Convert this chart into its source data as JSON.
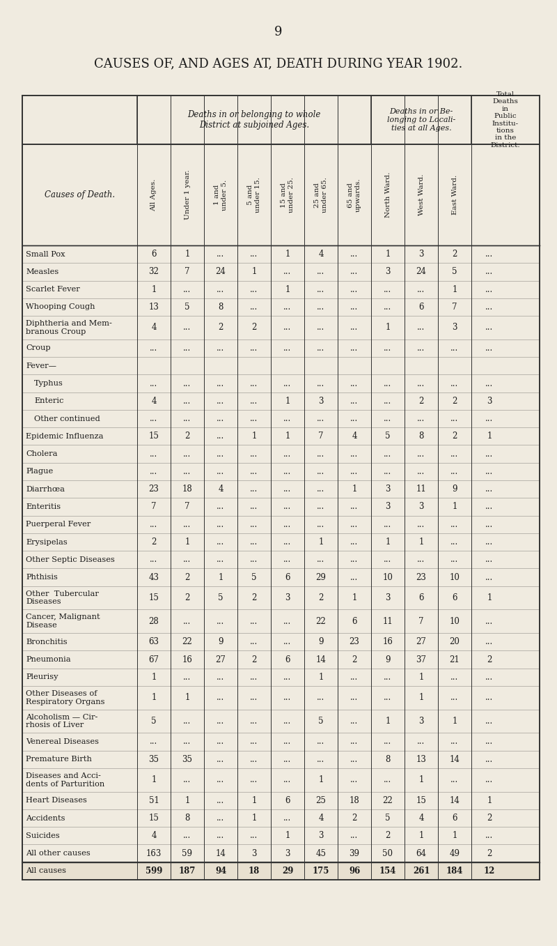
{
  "page_number": "9",
  "main_title": "CAUSES OF, AND AGES AT, DEATH DURING YEAR 1902.",
  "col_group1_header": "Deaths in or belonging to whole\nDistrict at subjoined Ages.",
  "col_group2_header": "Deaths in or Be-\nlonging to Locali-\nties at all Ages.",
  "col_group3_header": "Total\nDeaths\nin\nPublic\nInstitu-\ntions\nin the\nDistrict.",
  "row_header": "Causes of Death.",
  "col_headers": [
    "All Ages.",
    "Under 1 year.",
    "1 and\nunder 5.",
    "5 and\nunder 15.",
    "15 and\nunder 25.",
    "25 and\nunder 65.",
    "65 and\nupwards.",
    "North Ward.",
    "West Ward.",
    "East Ward.",
    "Total Deaths\nin Public\nInstitutions"
  ],
  "rows": [
    {
      "cause": "Small Pox",
      "indent": 0,
      "values": [
        "6",
        "1",
        "...",
        "...",
        "1",
        "4",
        "...",
        "1",
        "3",
        "2",
        "..."
      ]
    },
    {
      "cause": "Measles",
      "indent": 0,
      "values": [
        "32",
        "7",
        "24",
        "1",
        "...",
        "...",
        "...",
        "3",
        "24",
        "5",
        "..."
      ]
    },
    {
      "cause": "Scarlet Fever",
      "indent": 0,
      "values": [
        "1",
        "...",
        "...",
        "...",
        "1",
        "...",
        "...",
        "...",
        "...",
        "1",
        "..."
      ]
    },
    {
      "cause": "Whooping Cough",
      "indent": 0,
      "values": [
        "13",
        "5",
        "8",
        "...",
        "...",
        "...",
        "...",
        "...",
        "6",
        "7",
        "..."
      ]
    },
    {
      "cause": "Diphtheria and Mem-\nbranous Croup",
      "indent": 0,
      "values": [
        "4",
        "...",
        "2",
        "2",
        "...",
        "...",
        "...",
        "1",
        "...",
        "3",
        "..."
      ]
    },
    {
      "cause": "Croup",
      "indent": 0,
      "values": [
        "...",
        "...",
        "...",
        "...",
        "...",
        "...",
        "...",
        "...",
        "...",
        "...",
        "..."
      ]
    },
    {
      "cause": "Fever—",
      "indent": 0,
      "values": [
        "",
        "",
        "",
        "",
        "",
        "",
        "",
        "",
        "",
        "",
        ""
      ]
    },
    {
      "cause": "Typhus",
      "indent": 1,
      "values": [
        "...",
        "...",
        "...",
        "...",
        "...",
        "...",
        "...",
        "...",
        "...",
        "...",
        "..."
      ]
    },
    {
      "cause": "Enteric",
      "indent": 1,
      "values": [
        "4",
        "...",
        "...",
        "...",
        "1",
        "3",
        "...",
        "...",
        "2",
        "2",
        "3"
      ]
    },
    {
      "cause": "Other continued",
      "indent": 1,
      "values": [
        "...",
        "...",
        "...",
        "...",
        "...",
        "...",
        "...",
        "...",
        "...",
        "...",
        "..."
      ]
    },
    {
      "cause": "Epidemic Influenza",
      "indent": 0,
      "values": [
        "15",
        "2",
        "...",
        "1",
        "1",
        "7",
        "4",
        "5",
        "8",
        "2",
        "1"
      ]
    },
    {
      "cause": "Cholera",
      "indent": 0,
      "values": [
        "...",
        "...",
        "...",
        "...",
        "...",
        "...",
        "...",
        "...",
        "...",
        "...",
        "..."
      ]
    },
    {
      "cause": "Plague",
      "indent": 0,
      "values": [
        "...",
        "...",
        "...",
        "...",
        "...",
        "...",
        "...",
        "...",
        "...",
        "...",
        "..."
      ]
    },
    {
      "cause": "Diarrhœa",
      "indent": 0,
      "values": [
        "23",
        "18",
        "4",
        "...",
        "...",
        "...",
        "1",
        "3",
        "11",
        "9",
        "..."
      ]
    },
    {
      "cause": "Enteritis",
      "indent": 0,
      "values": [
        "7",
        "7",
        "...",
        "...",
        "...",
        "...",
        "...",
        "3",
        "3",
        "1",
        "..."
      ]
    },
    {
      "cause": "Puerperal Fever",
      "indent": 0,
      "values": [
        "...",
        "...",
        "...",
        "...",
        "...",
        "...",
        "...",
        "...",
        "...",
        "...",
        "..."
      ]
    },
    {
      "cause": "Erysipelas",
      "indent": 0,
      "values": [
        "2",
        "1",
        "...",
        "...",
        "...",
        "1",
        "...",
        "1",
        "1",
        "...",
        "..."
      ]
    },
    {
      "cause": "Other Septic Diseases",
      "indent": 0,
      "values": [
        "...",
        "...",
        "...",
        "...",
        "...",
        "...",
        "...",
        "...",
        "...",
        "...",
        "..."
      ]
    },
    {
      "cause": "Phthisis",
      "indent": 0,
      "values": [
        "43",
        "2",
        "1",
        "5",
        "6",
        "29",
        "...",
        "10",
        "23",
        "10",
        "..."
      ]
    },
    {
      "cause": "Other  Tubercular\nDiseases",
      "indent": 0,
      "values": [
        "15",
        "2",
        "5",
        "2",
        "3",
        "2",
        "1",
        "3",
        "6",
        "6",
        "1"
      ]
    },
    {
      "cause": "Cancer, Malignant\nDisease",
      "indent": 0,
      "values": [
        "28",
        "...",
        "...",
        "...",
        "...",
        "22",
        "6",
        "11",
        "7",
        "10",
        "..."
      ]
    },
    {
      "cause": "Bronchitis",
      "indent": 0,
      "values": [
        "63",
        "22",
        "9",
        "...",
        "...",
        "9",
        "23",
        "16",
        "27",
        "20",
        "..."
      ]
    },
    {
      "cause": "Pneumonia",
      "indent": 0,
      "values": [
        "67",
        "16",
        "27",
        "2",
        "6",
        "14",
        "2",
        "9",
        "37",
        "21",
        "2"
      ]
    },
    {
      "cause": "Pleurisy",
      "indent": 0,
      "values": [
        "1",
        "...",
        "...",
        "...",
        "...",
        "1",
        "...",
        "...",
        "1",
        "...",
        "..."
      ]
    },
    {
      "cause": "Other Diseases of\nRespiratory Organs",
      "indent": 0,
      "values": [
        "1",
        "1",
        "...",
        "...",
        "...",
        "...",
        "...",
        "...",
        "1",
        "...",
        "..."
      ]
    },
    {
      "cause": "Alcoholism — Cir-\nrhosis of Liver",
      "indent": 0,
      "values": [
        "5",
        "...",
        "...",
        "...",
        "...",
        "5",
        "...",
        "1",
        "3",
        "1",
        "..."
      ]
    },
    {
      "cause": "Venereal Diseases",
      "indent": 0,
      "values": [
        "...",
        "...",
        "...",
        "...",
        "...",
        "...",
        "...",
        "...",
        "...",
        "...",
        "..."
      ]
    },
    {
      "cause": "Premature Birth",
      "indent": 0,
      "values": [
        "35",
        "35",
        "...",
        "...",
        "...",
        "...",
        "...",
        "8",
        "13",
        "14",
        "..."
      ]
    },
    {
      "cause": "Diseases and Acci-\ndents of Parturition",
      "indent": 0,
      "values": [
        "1",
        "...",
        "...",
        "...",
        "...",
        "1",
        "...",
        "...",
        "1",
        "...",
        "..."
      ]
    },
    {
      "cause": "Heart Diseases",
      "indent": 0,
      "values": [
        "51",
        "1",
        "...",
        "1",
        "6",
        "25",
        "18",
        "22",
        "15",
        "14",
        "1"
      ]
    },
    {
      "cause": "Accidents",
      "indent": 0,
      "values": [
        "15",
        "8",
        "...",
        "1",
        "...",
        "4",
        "2",
        "5",
        "4",
        "6",
        "2"
      ]
    },
    {
      "cause": "Suicides",
      "indent": 0,
      "values": [
        "4",
        "...",
        "...",
        "...",
        "1",
        "3",
        "...",
        "2",
        "1",
        "1",
        "..."
      ]
    },
    {
      "cause": "All other causes",
      "indent": 0,
      "values": [
        "163",
        "59",
        "14",
        "3",
        "3",
        "45",
        "39",
        "50",
        "64",
        "49",
        "2"
      ]
    },
    {
      "cause": "All causes",
      "indent": 0,
      "values": [
        "599",
        "187",
        "94",
        "18",
        "29",
        "175",
        "96",
        "154",
        "261",
        "184",
        "12"
      ],
      "is_total": true
    }
  ],
  "bg_color": "#f0ebe0",
  "text_color": "#1a1a1a",
  "line_color": "#333333",
  "font_family": "serif"
}
